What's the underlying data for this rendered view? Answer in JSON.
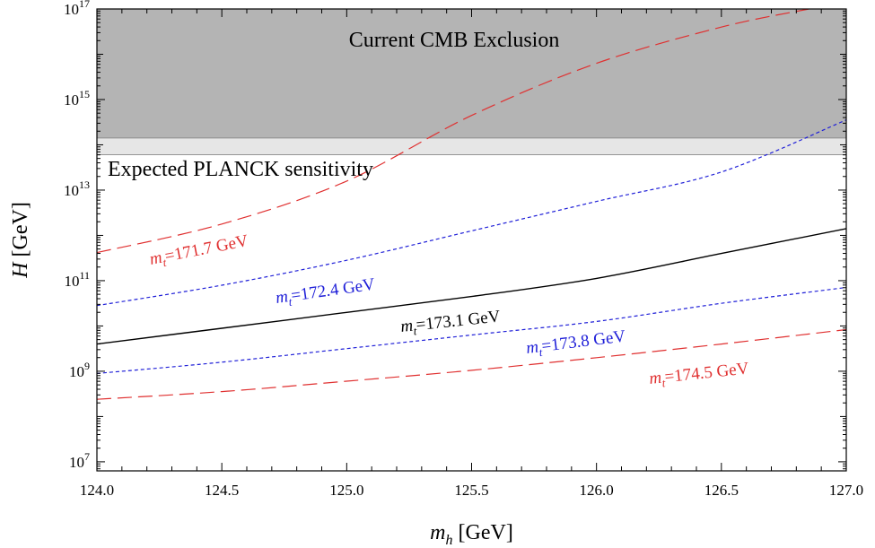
{
  "chart_data": {
    "type": "line",
    "title": "",
    "xlabel": "[GeV]",
    "xlabel_symbol": "m",
    "xlabel_subscript": "h",
    "ylabel": "[GeV]",
    "ylabel_symbol": "H",
    "xlim": [
      124.0,
      127.0
    ],
    "ylim_log10": [
      6.8,
      17
    ],
    "y_scale": "log",
    "grid": false,
    "x_ticks": [
      124.0,
      124.5,
      125.0,
      125.5,
      126.0,
      126.5,
      127.0
    ],
    "x_tick_labels": [
      "124.0",
      "124.5",
      "125.0",
      "125.5",
      "126.0",
      "126.5",
      "127.0"
    ],
    "y_ticks_log10": [
      7,
      9,
      11,
      13,
      15,
      17
    ],
    "y_tick_base": "10",
    "y_tick_exponents": [
      "7",
      "9",
      "11",
      "13",
      "15",
      "17"
    ],
    "regions": [
      {
        "name": "cmb",
        "label": "Current CMB Exclusion",
        "y_from_log10": 14.15,
        "y_to_log10": 17,
        "color": "#b4b4b4"
      },
      {
        "name": "planck",
        "label": "Expected PLANCK sensitivity",
        "y_from_log10": 13.78,
        "y_to_log10": 14.15,
        "color": "#e6e6e6"
      }
    ],
    "series": [
      {
        "name": "m_t=171.7 GeV",
        "label_symbol": "m",
        "label_subscript": "t",
        "label_value": "=171.7 GeV",
        "color": "#e03030",
        "dash": "long",
        "x": [
          124.0,
          124.5,
          125.0,
          125.5,
          126.0,
          126.5,
          126.85
        ],
        "y_log10": [
          11.62,
          12.25,
          13.2,
          14.65,
          15.8,
          16.6,
          17.0
        ]
      },
      {
        "name": "m_t=172.4 GeV",
        "label_symbol": "m",
        "label_subscript": "t",
        "label_value": "=172.4 GeV",
        "color": "#2020d8",
        "dash": "short",
        "x": [
          124.0,
          124.5,
          125.0,
          125.5,
          126.0,
          126.5,
          127.0
        ],
        "y_log10": [
          10.45,
          10.9,
          11.45,
          12.1,
          12.75,
          13.4,
          14.55
        ]
      },
      {
        "name": "m_t=173.1 GeV",
        "label_symbol": "m",
        "label_subscript": "t",
        "label_value": "=173.1 GeV",
        "color": "#000000",
        "dash": "solid",
        "x": [
          124.0,
          124.5,
          125.0,
          125.5,
          126.0,
          126.5,
          127.0
        ],
        "y_log10": [
          9.6,
          9.95,
          10.3,
          10.65,
          11.05,
          11.6,
          12.15
        ]
      },
      {
        "name": "m_t=173.8 GeV",
        "label_symbol": "m",
        "label_subscript": "t",
        "label_value": "=173.8 GeV",
        "color": "#2020d8",
        "dash": "short",
        "x": [
          124.0,
          124.5,
          125.0,
          125.5,
          126.0,
          126.5,
          127.0
        ],
        "y_log10": [
          8.95,
          9.2,
          9.5,
          9.8,
          10.1,
          10.5,
          10.85
        ]
      },
      {
        "name": "m_t=174.5 GeV",
        "label_symbol": "m",
        "label_subscript": "t",
        "label_value": "=174.5 GeV",
        "color": "#e03030",
        "dash": "long",
        "x": [
          124.0,
          124.5,
          125.0,
          125.5,
          126.0,
          126.5,
          127.0
        ],
        "y_log10": [
          8.38,
          8.55,
          8.78,
          9.02,
          9.3,
          9.6,
          9.92
        ]
      }
    ]
  }
}
